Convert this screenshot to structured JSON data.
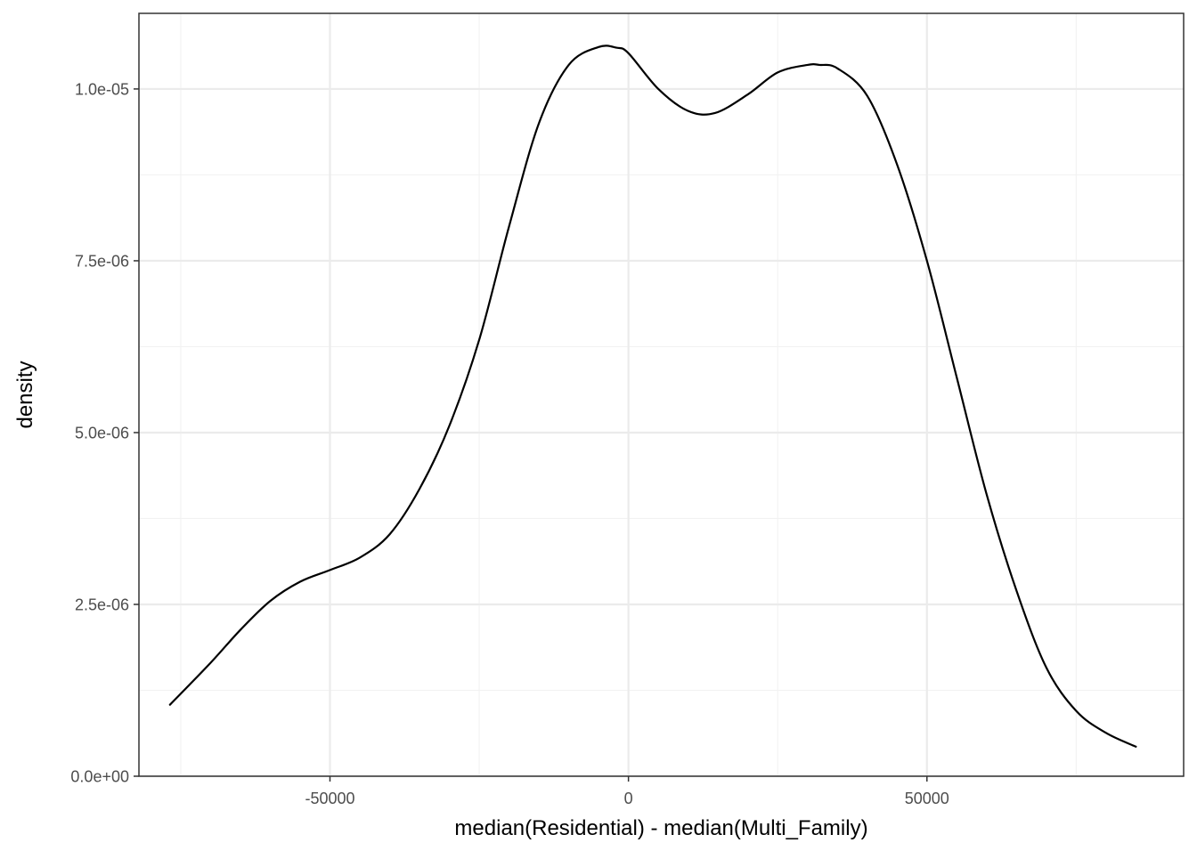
{
  "chart_data": {
    "type": "line",
    "title": "",
    "xlabel": "median(Residential) - median(Multi_Family)",
    "ylabel": "density",
    "xlim": [
      -82000,
      93000
    ],
    "ylim": [
      0,
      1.11e-05
    ],
    "x_ticks": [
      {
        "value": -50000,
        "label": "-50000"
      },
      {
        "value": 0,
        "label": "0"
      },
      {
        "value": 50000,
        "label": "50000"
      }
    ],
    "x_minor_ticks": [
      -75000,
      -25000,
      25000,
      75000
    ],
    "y_ticks": [
      {
        "value": 0,
        "label": "0.0e+00"
      },
      {
        "value": 2.5e-06,
        "label": "2.5e-06"
      },
      {
        "value": 5e-06,
        "label": "5.0e-06"
      },
      {
        "value": 7.5e-06,
        "label": "7.5e-06"
      },
      {
        "value": 1e-05,
        "label": "1.0e-05"
      }
    ],
    "y_minor_ticks": [
      1.25e-06,
      3.75e-06,
      6.25e-06,
      8.75e-06
    ],
    "grid": true,
    "legend": "none",
    "colors": {
      "line": "#000000",
      "panel_border": "#333333",
      "grid_major": "#ebebeb",
      "grid_minor": "#f2f2f2",
      "tick_label": "#4d4d4d",
      "background": "#ffffff"
    },
    "series": [
      {
        "x": [
          -76800,
          -70000,
          -65000,
          -60000,
          -55000,
          -50000,
          -45000,
          -40000,
          -35000,
          -30000,
          -25000,
          -20000,
          -15000,
          -10000,
          -5000,
          -2000,
          0,
          5000,
          10000,
          14500,
          20000,
          25000,
          30000,
          32000,
          35000,
          40000,
          45000,
          50000,
          55000,
          60000,
          65000,
          70000,
          75000,
          80000,
          85000
        ],
        "y": [
          1.04e-06,
          1.65e-06,
          2.13e-06,
          2.55e-06,
          2.83e-06,
          3e-06,
          3.18e-06,
          3.52e-06,
          4.18e-06,
          5.1e-06,
          6.35e-06,
          8e-06,
          9.5e-06,
          1.035e-05,
          1.061e-05,
          1.06e-05,
          1.052e-05,
          1e-05,
          9.68e-06,
          9.65e-06,
          9.92e-06,
          1.024e-05,
          1.035e-05,
          1.035e-05,
          1.03e-05,
          9.9e-06,
          8.9e-06,
          7.5e-06,
          5.8e-06,
          4.1e-06,
          2.7e-06,
          1.58e-06,
          9.5e-07,
          6.3e-07,
          4.3e-07
        ]
      }
    ]
  }
}
